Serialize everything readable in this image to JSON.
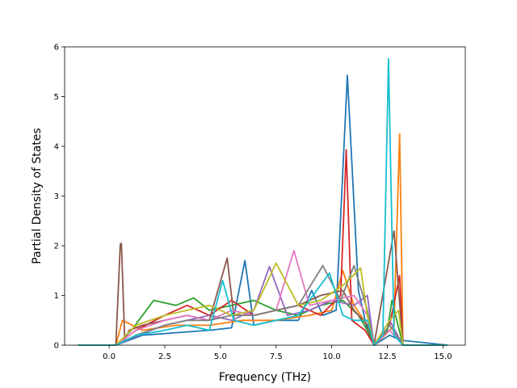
{
  "chart_data": {
    "type": "line",
    "title": "",
    "xlabel": "Frequency (THz)",
    "ylabel": "Partial Density of States",
    "xlim": [
      -2.0,
      16.0
    ],
    "ylim": [
      0,
      6.0
    ],
    "xticks": [
      "0.0",
      "2.5",
      "5.0",
      "7.5",
      "10.0",
      "12.5",
      "15.0"
    ],
    "yticks": [
      "0",
      "1",
      "2",
      "3",
      "4",
      "5",
      "6"
    ],
    "grid": false,
    "legend": "none",
    "colors": [
      "#1f77b4",
      "#ff7f0e",
      "#2ca02c",
      "#d62728",
      "#9467bd",
      "#8c564b",
      "#e377c2",
      "#7f7f7f",
      "#bcbd22",
      "#17becf"
    ],
    "series": [
      {
        "color": "#1f77b4",
        "x": [
          -1.4,
          0.3,
          1.5,
          3.0,
          4.5,
          5.5,
          6.1,
          6.5,
          7.5,
          8.5,
          9.1,
          9.6,
          10.2,
          10.7,
          11.2,
          11.6,
          11.9,
          12.6,
          13.1,
          15.2
        ],
        "y": [
          0,
          0,
          0.2,
          0.25,
          0.3,
          0.35,
          1.7,
          0.4,
          0.5,
          0.5,
          1.1,
          0.6,
          0.7,
          5.43,
          1.1,
          0.3,
          0,
          0.2,
          0.1,
          0
        ]
      },
      {
        "color": "#ff7f0e",
        "x": [
          -1.4,
          0.3,
          0.6,
          1.5,
          3.0,
          4.5,
          6.0,
          7.5,
          9.0,
          10.0,
          10.5,
          11.0,
          11.6,
          11.9,
          12.4,
          12.8,
          13.05,
          13.2,
          15.2
        ],
        "y": [
          0,
          0,
          0.5,
          0.3,
          0.4,
          0.4,
          0.5,
          0.5,
          0.6,
          0.7,
          1.5,
          0.8,
          0.4,
          0,
          0.2,
          0.4,
          4.25,
          0,
          0
        ]
      },
      {
        "color": "#2ca02c",
        "x": [
          -1.4,
          0.3,
          1.0,
          2.0,
          3.0,
          3.8,
          4.5,
          5.5,
          6.5,
          7.5,
          8.5,
          9.5,
          10.5,
          11.2,
          11.6,
          11.9,
          12.5,
          12.7,
          13.2,
          15.2
        ],
        "y": [
          0,
          0,
          0.3,
          0.9,
          0.8,
          0.95,
          0.7,
          0.8,
          0.9,
          0.7,
          0.6,
          0.8,
          0.9,
          0.6,
          0.3,
          0,
          0.3,
          0.9,
          0,
          0
        ]
      },
      {
        "color": "#d62728",
        "x": [
          -1.4,
          0.3,
          1.2,
          2.5,
          3.5,
          4.5,
          5.5,
          6.5,
          7.5,
          8.5,
          9.5,
          10.4,
          10.65,
          10.9,
          11.5,
          11.9,
          12.6,
          13.05,
          13.2,
          15.2
        ],
        "y": [
          0,
          0,
          0.3,
          0.6,
          0.8,
          0.6,
          0.9,
          0.6,
          0.7,
          0.8,
          0.6,
          1.0,
          3.93,
          0.5,
          0.3,
          0,
          0.4,
          1.4,
          0,
          0
        ]
      },
      {
        "color": "#9467bd",
        "x": [
          -1.4,
          0.3,
          1.3,
          2.5,
          3.5,
          4.5,
          5.5,
          6.5,
          7.2,
          8.0,
          9.0,
          10.0,
          11.0,
          11.6,
          11.9,
          12.6,
          13.2,
          15.2
        ],
        "y": [
          0,
          0,
          0.2,
          0.4,
          0.5,
          0.6,
          0.5,
          0.7,
          1.58,
          0.6,
          0.7,
          0.9,
          0.8,
          1.0,
          0,
          0.5,
          0,
          0
        ]
      },
      {
        "color": "#8c564b",
        "x": [
          -1.4,
          0.3,
          0.5,
          0.55,
          0.7,
          0.9,
          1.5,
          2.5,
          3.5,
          4.5,
          5.3,
          5.6,
          6.5,
          7.5,
          8.5,
          9.5,
          10.5,
          11.0,
          11.6,
          11.9,
          12.8,
          13.2,
          15.2
        ],
        "y": [
          0,
          0,
          2.03,
          2.05,
          0.1,
          0.3,
          0.4,
          0.5,
          0.6,
          0.5,
          1.75,
          0.6,
          0.6,
          0.7,
          0.8,
          1.0,
          1.1,
          0.7,
          0.4,
          0,
          2.3,
          0,
          0
        ]
      },
      {
        "color": "#e377c2",
        "x": [
          -1.4,
          0.3,
          1.2,
          2.5,
          3.5,
          4.5,
          5.5,
          6.5,
          7.5,
          8.3,
          9.0,
          10.0,
          11.0,
          11.6,
          11.9,
          12.6,
          13.2,
          15.2
        ],
        "y": [
          0,
          0,
          0.3,
          0.5,
          0.6,
          0.5,
          0.7,
          0.6,
          0.7,
          1.9,
          0.8,
          0.9,
          1.0,
          0.6,
          0,
          0.3,
          0,
          0
        ]
      },
      {
        "color": "#7f7f7f",
        "x": [
          -1.4,
          0.3,
          1.2,
          2.5,
          3.5,
          4.5,
          5.5,
          6.5,
          7.5,
          8.5,
          9.6,
          10.4,
          11.0,
          11.6,
          11.9,
          12.6,
          13.2,
          15.2
        ],
        "y": [
          0,
          0,
          0.2,
          0.4,
          0.5,
          0.5,
          0.6,
          0.6,
          0.7,
          0.8,
          1.6,
          0.9,
          1.6,
          0.7,
          0,
          0.4,
          0,
          0
        ]
      },
      {
        "color": "#bcbd22",
        "x": [
          -1.4,
          0.3,
          1.2,
          2.5,
          3.5,
          4.5,
          5.5,
          6.5,
          7.5,
          8.5,
          9.5,
          10.5,
          11.3,
          11.6,
          11.9,
          12.6,
          13.0,
          13.2,
          15.2
        ],
        "y": [
          0,
          0,
          0.4,
          0.6,
          0.7,
          0.8,
          0.6,
          0.7,
          1.65,
          0.8,
          0.9,
          1.2,
          1.55,
          0.6,
          0,
          0.5,
          0.7,
          0,
          0
        ]
      },
      {
        "color": "#17becf",
        "x": [
          -1.4,
          0.3,
          1.2,
          2.5,
          3.5,
          4.5,
          5.1,
          5.6,
          6.5,
          7.5,
          8.5,
          9.9,
          10.5,
          11.0,
          11.6,
          11.9,
          12.3,
          12.55,
          12.8,
          13.2,
          15.2
        ],
        "y": [
          0,
          0,
          0.2,
          0.3,
          0.4,
          0.3,
          1.3,
          0.5,
          0.4,
          0.5,
          0.6,
          1.45,
          0.6,
          0.5,
          0.5,
          0,
          0.2,
          5.76,
          0.2,
          0,
          0
        ]
      }
    ]
  }
}
